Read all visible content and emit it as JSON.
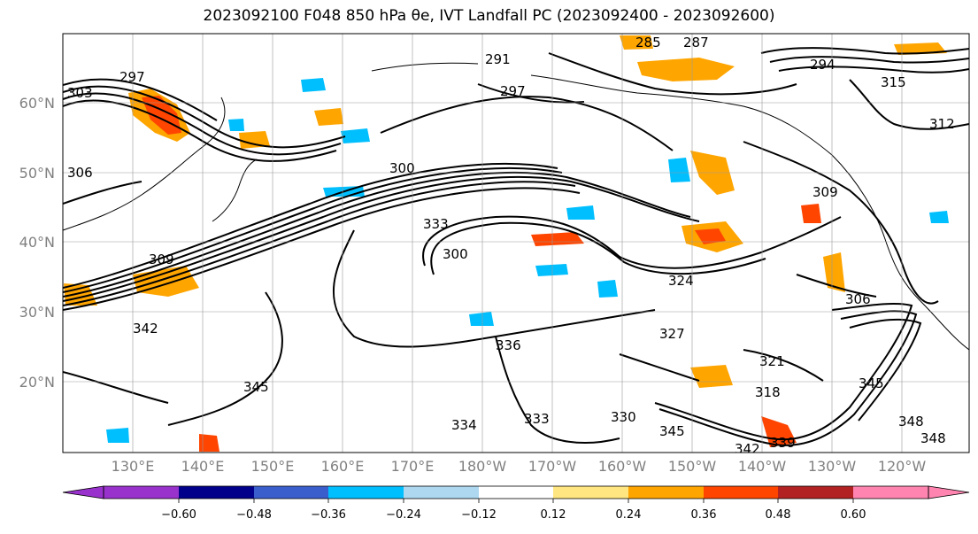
{
  "title_text": "2023092100 F048 850 hPa θe, IVT Landfall PC (2023092400 - 2023092600)",
  "map": {
    "lon_ticks": [
      "130°E",
      "140°E",
      "150°E",
      "160°E",
      "170°E",
      "180°W",
      "170°W",
      "160°W",
      "150°W",
      "140°W",
      "130°W",
      "120°W"
    ],
    "lat_ticks": [
      "60°N",
      "50°N",
      "40°N",
      "30°N",
      "20°N"
    ],
    "gridlines": true,
    "coastlines": true
  },
  "contour_labels": [
    "285",
    "287",
    "291",
    "294",
    "297",
    "303",
    "306",
    "300",
    "309",
    "315",
    "312",
    "333",
    "324",
    "327",
    "321",
    "318",
    "330",
    "336",
    "342",
    "345",
    "348",
    "339",
    "334"
  ],
  "colorbar": {
    "ticks": [
      "−0.60",
      "−0.48",
      "−0.36",
      "−0.24",
      "−0.12",
      "0.12",
      "0.24",
      "0.36",
      "0.48",
      "0.60"
    ],
    "colors": [
      "#9932cc",
      "#00008b",
      "#3a5fcd",
      "#00bfff",
      "#add8f0",
      "#ffffff",
      "#ffe680",
      "#ffa500",
      "#ff4500",
      "#b22222",
      "#ff85b0"
    ],
    "extend": "both"
  }
}
